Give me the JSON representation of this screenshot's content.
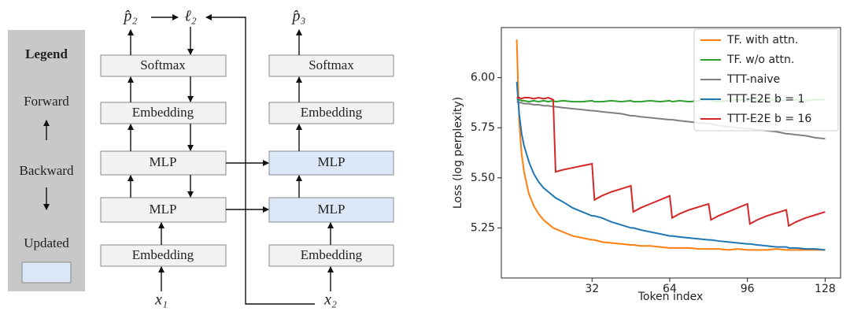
{
  "diagram": {
    "legend": {
      "title": "Legend",
      "items": [
        "Forward",
        "Backward",
        "Updated"
      ]
    },
    "columns": [
      {
        "boxes": [
          "Softmax",
          "Embedding",
          "MLP",
          "MLP",
          "Embedding"
        ]
      },
      {
        "boxes": [
          "Softmax",
          "Embedding",
          "MLP",
          "MLP",
          "Embedding"
        ]
      }
    ],
    "symbols": [
      "p̂₂",
      "ℓ₂",
      "p̂₃",
      "x₁",
      "x₂"
    ]
  },
  "chart_data": {
    "type": "line",
    "xlabel": "Token index",
    "ylabel": "Loss (log perplexity)",
    "x": [
      1,
      2,
      3,
      4,
      6,
      8,
      10,
      12,
      14,
      16,
      17,
      20,
      24,
      28,
      32,
      33,
      36,
      40,
      44,
      48,
      49,
      52,
      56,
      60,
      64,
      65,
      68,
      72,
      76,
      80,
      81,
      84,
      88,
      92,
      96,
      97,
      100,
      104,
      108,
      112,
      113,
      116,
      120,
      124,
      128
    ],
    "series": [
      {
        "name": "TF. with attn.",
        "color": "#ff7f0e",
        "values": [
          6.19,
          5.78,
          5.62,
          5.53,
          5.42,
          5.36,
          5.32,
          5.29,
          5.27,
          5.25,
          5.245,
          5.23,
          5.21,
          5.2,
          5.19,
          5.19,
          5.18,
          5.175,
          5.17,
          5.165,
          5.165,
          5.16,
          5.16,
          5.155,
          5.15,
          5.15,
          5.15,
          5.15,
          5.145,
          5.145,
          5.145,
          5.145,
          5.14,
          5.145,
          5.14,
          5.14,
          5.14,
          5.14,
          5.145,
          5.14,
          5.14,
          5.14,
          5.14,
          5.14,
          5.14
        ]
      },
      {
        "name": "TF. w/o attn.",
        "color": "#2ca02c",
        "values": [
          5.89,
          5.89,
          5.885,
          5.885,
          5.88,
          5.885,
          5.88,
          5.885,
          5.88,
          5.885,
          5.88,
          5.885,
          5.88,
          5.88,
          5.885,
          5.88,
          5.88,
          5.885,
          5.88,
          5.885,
          5.88,
          5.88,
          5.885,
          5.88,
          5.885,
          5.88,
          5.885,
          5.88,
          5.885,
          5.89,
          5.885,
          5.88,
          5.885,
          5.89,
          5.885,
          5.885,
          5.89,
          5.885,
          5.89,
          5.885,
          5.89,
          5.89,
          5.885,
          5.89,
          5.89
        ]
      },
      {
        "name": "TTT-naive",
        "color": "#7f7f7f",
        "values": [
          5.88,
          5.875,
          5.875,
          5.87,
          5.87,
          5.865,
          5.865,
          5.86,
          5.86,
          5.855,
          5.855,
          5.85,
          5.845,
          5.84,
          5.835,
          5.835,
          5.83,
          5.825,
          5.82,
          5.81,
          5.81,
          5.805,
          5.8,
          5.795,
          5.79,
          5.79,
          5.785,
          5.78,
          5.775,
          5.77,
          5.77,
          5.76,
          5.755,
          5.75,
          5.745,
          5.745,
          5.74,
          5.735,
          5.73,
          5.72,
          5.72,
          5.715,
          5.71,
          5.7,
          5.695
        ]
      },
      {
        "name": "TTT-E2E b = 1",
        "color": "#1f77b4",
        "values": [
          5.98,
          5.82,
          5.72,
          5.66,
          5.58,
          5.52,
          5.48,
          5.45,
          5.43,
          5.41,
          5.4,
          5.38,
          5.35,
          5.33,
          5.31,
          5.31,
          5.3,
          5.28,
          5.265,
          5.25,
          5.25,
          5.24,
          5.23,
          5.22,
          5.21,
          5.21,
          5.205,
          5.2,
          5.195,
          5.19,
          5.19,
          5.185,
          5.18,
          5.175,
          5.17,
          5.17,
          5.165,
          5.16,
          5.155,
          5.155,
          5.15,
          5.15,
          5.145,
          5.145,
          5.14
        ]
      },
      {
        "name": "TTT-E2E b = 16",
        "color": "#d62728",
        "values": [
          5.9,
          5.9,
          5.895,
          5.9,
          5.9,
          5.895,
          5.9,
          5.895,
          5.9,
          5.89,
          5.53,
          5.54,
          5.55,
          5.56,
          5.57,
          5.39,
          5.41,
          5.43,
          5.445,
          5.46,
          5.33,
          5.35,
          5.37,
          5.39,
          5.41,
          5.3,
          5.32,
          5.34,
          5.355,
          5.37,
          5.29,
          5.31,
          5.33,
          5.35,
          5.37,
          5.27,
          5.29,
          5.31,
          5.325,
          5.34,
          5.26,
          5.28,
          5.3,
          5.315,
          5.33
        ]
      }
    ],
    "xlim": [
      -5.35,
      134.35
    ],
    "ylim": [
      5.0,
      6.25
    ],
    "xticks": [
      32,
      64,
      96,
      128
    ],
    "yticks": [
      {
        "value": 5.25,
        "label": "5.25"
      },
      {
        "value": 5.5,
        "label": "5.50"
      },
      {
        "value": 5.75,
        "label": "5.75"
      },
      {
        "value": 6,
        "label": "6.00"
      }
    ],
    "grid": false,
    "legend": "upper right"
  }
}
